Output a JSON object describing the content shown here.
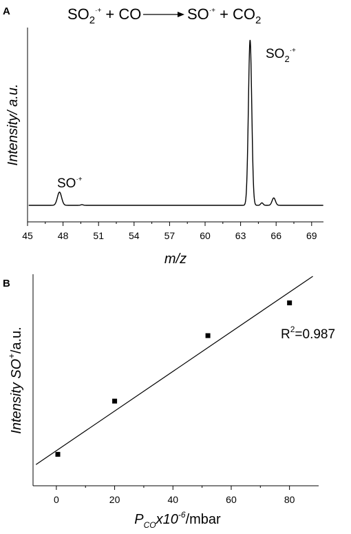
{
  "chart_data": [
    {
      "panel": "A",
      "type": "line",
      "title": "SO2·+ + CO → SO·+ + CO2",
      "title_parts": {
        "reactant1": "SO",
        "reactant1_sub": "2",
        "reactant1_sup": "·+",
        "plus1": " + CO",
        "product1": "SO",
        "product1_sup": "·+",
        "plus2": " + CO",
        "product2_sub": "2"
      },
      "xlabel": "m/z",
      "ylabel": "Intensity/ a.u.",
      "xlim": [
        45,
        70
      ],
      "xticks": [
        45,
        48,
        51,
        54,
        57,
        60,
        63,
        66,
        69
      ],
      "ylim": [
        0,
        1.12
      ],
      "grid": false,
      "annotations": [
        {
          "text": "SO",
          "sup": "·+",
          "x": 47.7,
          "y": 0.08
        },
        {
          "text": "SO",
          "sub": "2",
          "sup": "·+",
          "x": 63.8,
          "y": 1.0
        }
      ],
      "peaks": [
        {
          "center": 47.7,
          "height": 0.08,
          "width": 0.25
        },
        {
          "center": 49.6,
          "height": 0.004,
          "width": 0.15
        },
        {
          "center": 63.8,
          "height": 1.0,
          "width": 0.2
        },
        {
          "center": 64.8,
          "height": 0.015,
          "width": 0.15
        },
        {
          "center": 65.8,
          "height": 0.045,
          "width": 0.2
        }
      ],
      "baseline": 0
    },
    {
      "panel": "B",
      "type": "scatter",
      "xlabel_parts": {
        "main": "P",
        "sub": "CO",
        "mid": "x10",
        "sup": "-6",
        "unit": "/mbar"
      },
      "ylabel_parts": {
        "main": "Intensity SO",
        "sup": "+",
        "unit": "/a.u."
      },
      "xlim": [
        -8,
        90
      ],
      "xticks": [
        0,
        20,
        40,
        60,
        80
      ],
      "ylim": [
        0,
        1
      ],
      "grid": false,
      "points": [
        {
          "x": 0.5,
          "y": 0.12
        },
        {
          "x": 20,
          "y": 0.38
        },
        {
          "x": 52,
          "y": 0.7
        },
        {
          "x": 80,
          "y": 0.86
        }
      ],
      "fit_line": {
        "x": [
          -7,
          88
        ],
        "y": [
          0.07,
          0.99
        ]
      },
      "r2_label": {
        "main": "R",
        "sup": "2",
        "value": "=0.987"
      }
    }
  ],
  "panel_labels": [
    "A",
    "B"
  ]
}
